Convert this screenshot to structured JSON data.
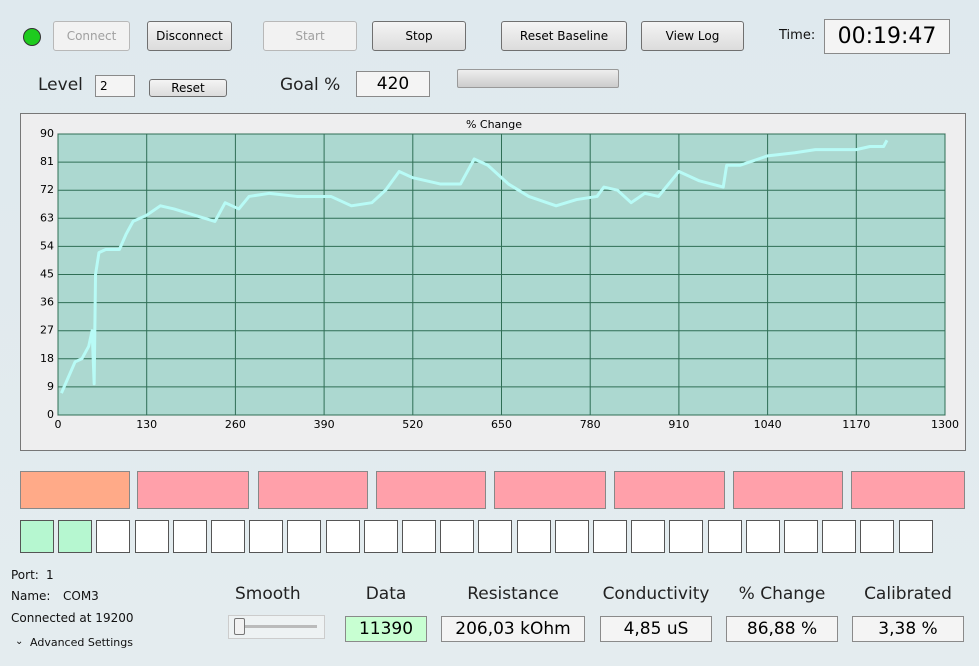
{
  "toolbar": {
    "buttons": [
      "Connect",
      "Disconnect",
      "Start",
      "Stop",
      "Reset Baseline",
      "View Log"
    ],
    "time_label": "Time:",
    "time": "00:19:47"
  },
  "level": {
    "label": "Level",
    "value": "2",
    "reset": "Reset"
  },
  "goal": {
    "label": "Goal %",
    "value": "420"
  },
  "chart_data": {
    "type": "line",
    "title": "% Change",
    "color": "#b8fbf6",
    "grid": true,
    "x": [
      5,
      15,
      25,
      35,
      45,
      50,
      53,
      55,
      60,
      70,
      90,
      100,
      110,
      130,
      150,
      170,
      200,
      230,
      245,
      265,
      280,
      310,
      350,
      380,
      400,
      430,
      460,
      480,
      500,
      520,
      560,
      590,
      610,
      630,
      660,
      690,
      730,
      760,
      790,
      800,
      820,
      840,
      860,
      880,
      910,
      940,
      975,
      980,
      1000,
      1040,
      1080,
      1110,
      1140,
      1170,
      1190,
      1210,
      1215
    ],
    "values": [
      7,
      12,
      17,
      18,
      22,
      27,
      10,
      45,
      52,
      53,
      53,
      58,
      62,
      64,
      67,
      66,
      64,
      62,
      68,
      66,
      70,
      71,
      70,
      70,
      70,
      67,
      68,
      72,
      78,
      76,
      74,
      74,
      82,
      80,
      74,
      70,
      67,
      69,
      70,
      73,
      72,
      68,
      71,
      70,
      78,
      75,
      73,
      80,
      80,
      83,
      84,
      85,
      85,
      85,
      86,
      86,
      88
    ],
    "xlim": [
      0,
      1300
    ],
    "xticks": [
      0,
      130,
      260,
      390,
      520,
      650,
      780,
      910,
      1040,
      1170,
      1300
    ],
    "ylim": [
      0,
      90
    ],
    "yticks": [
      0,
      9,
      18,
      27,
      36,
      45,
      54,
      63,
      72,
      81,
      90
    ]
  },
  "status": {
    "port_label": "Port:",
    "port": "1",
    "name_label": "Name:",
    "name": "COM3",
    "connection": "Connected at 19200",
    "advanced": "Advanced Settings"
  },
  "readouts": {
    "smooth_label": "Smooth",
    "items": [
      {
        "label": "Data",
        "value": "11390"
      },
      {
        "label": "Resistance",
        "value": "206,03 kOhm"
      },
      {
        "label": "Conductivity",
        "value": "4,85 uS"
      },
      {
        "label": "% Change",
        "value": "86,88 %"
      },
      {
        "label": "Calibrated",
        "value": "3,38 %"
      }
    ]
  }
}
